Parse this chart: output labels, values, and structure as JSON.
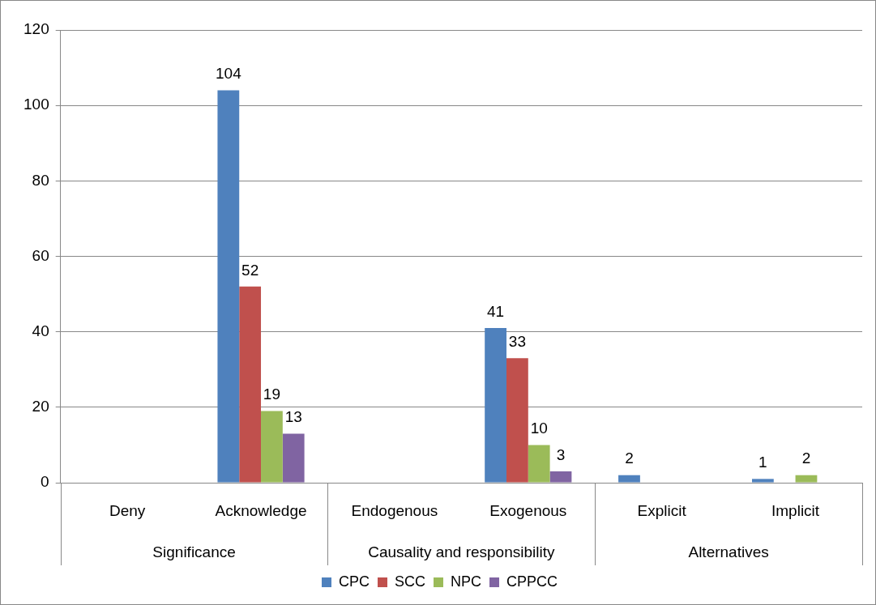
{
  "chart_data": {
    "type": "bar",
    "categories": [
      "Deny",
      "Acknowledge",
      "Endogenous",
      "Exogenous",
      "Explicit",
      "Implicit"
    ],
    "annotations": [
      "Significance",
      "Causality and responsibility",
      "Alternatives"
    ],
    "series": [
      {
        "name": "CPC",
        "color": "#4f81bd",
        "values": [
          0,
          104,
          0,
          41,
          2,
          1
        ],
        "value_labels": [
          null,
          "104",
          null,
          "41",
          "2",
          "1"
        ]
      },
      {
        "name": "SCC",
        "color": "#c0504d",
        "values": [
          0,
          52,
          0,
          33,
          0,
          0
        ],
        "value_labels": [
          null,
          "52",
          null,
          "33",
          null,
          null
        ]
      },
      {
        "name": "NPC",
        "color": "#9bbb59",
        "values": [
          0,
          19,
          0,
          10,
          0,
          2
        ],
        "value_labels": [
          null,
          "19",
          null,
          "10",
          null,
          "2"
        ]
      },
      {
        "name": "CPPCC",
        "color": "#8064a2",
        "values": [
          0,
          13,
          0,
          3,
          0,
          0
        ],
        "value_labels": [
          null,
          "13",
          null,
          "3",
          null,
          null
        ]
      }
    ],
    "ylim": [
      0,
      120
    ],
    "yticks": [
      0,
      20,
      40,
      60,
      80,
      100,
      120
    ],
    "grid": "y",
    "legend": "bottom"
  }
}
